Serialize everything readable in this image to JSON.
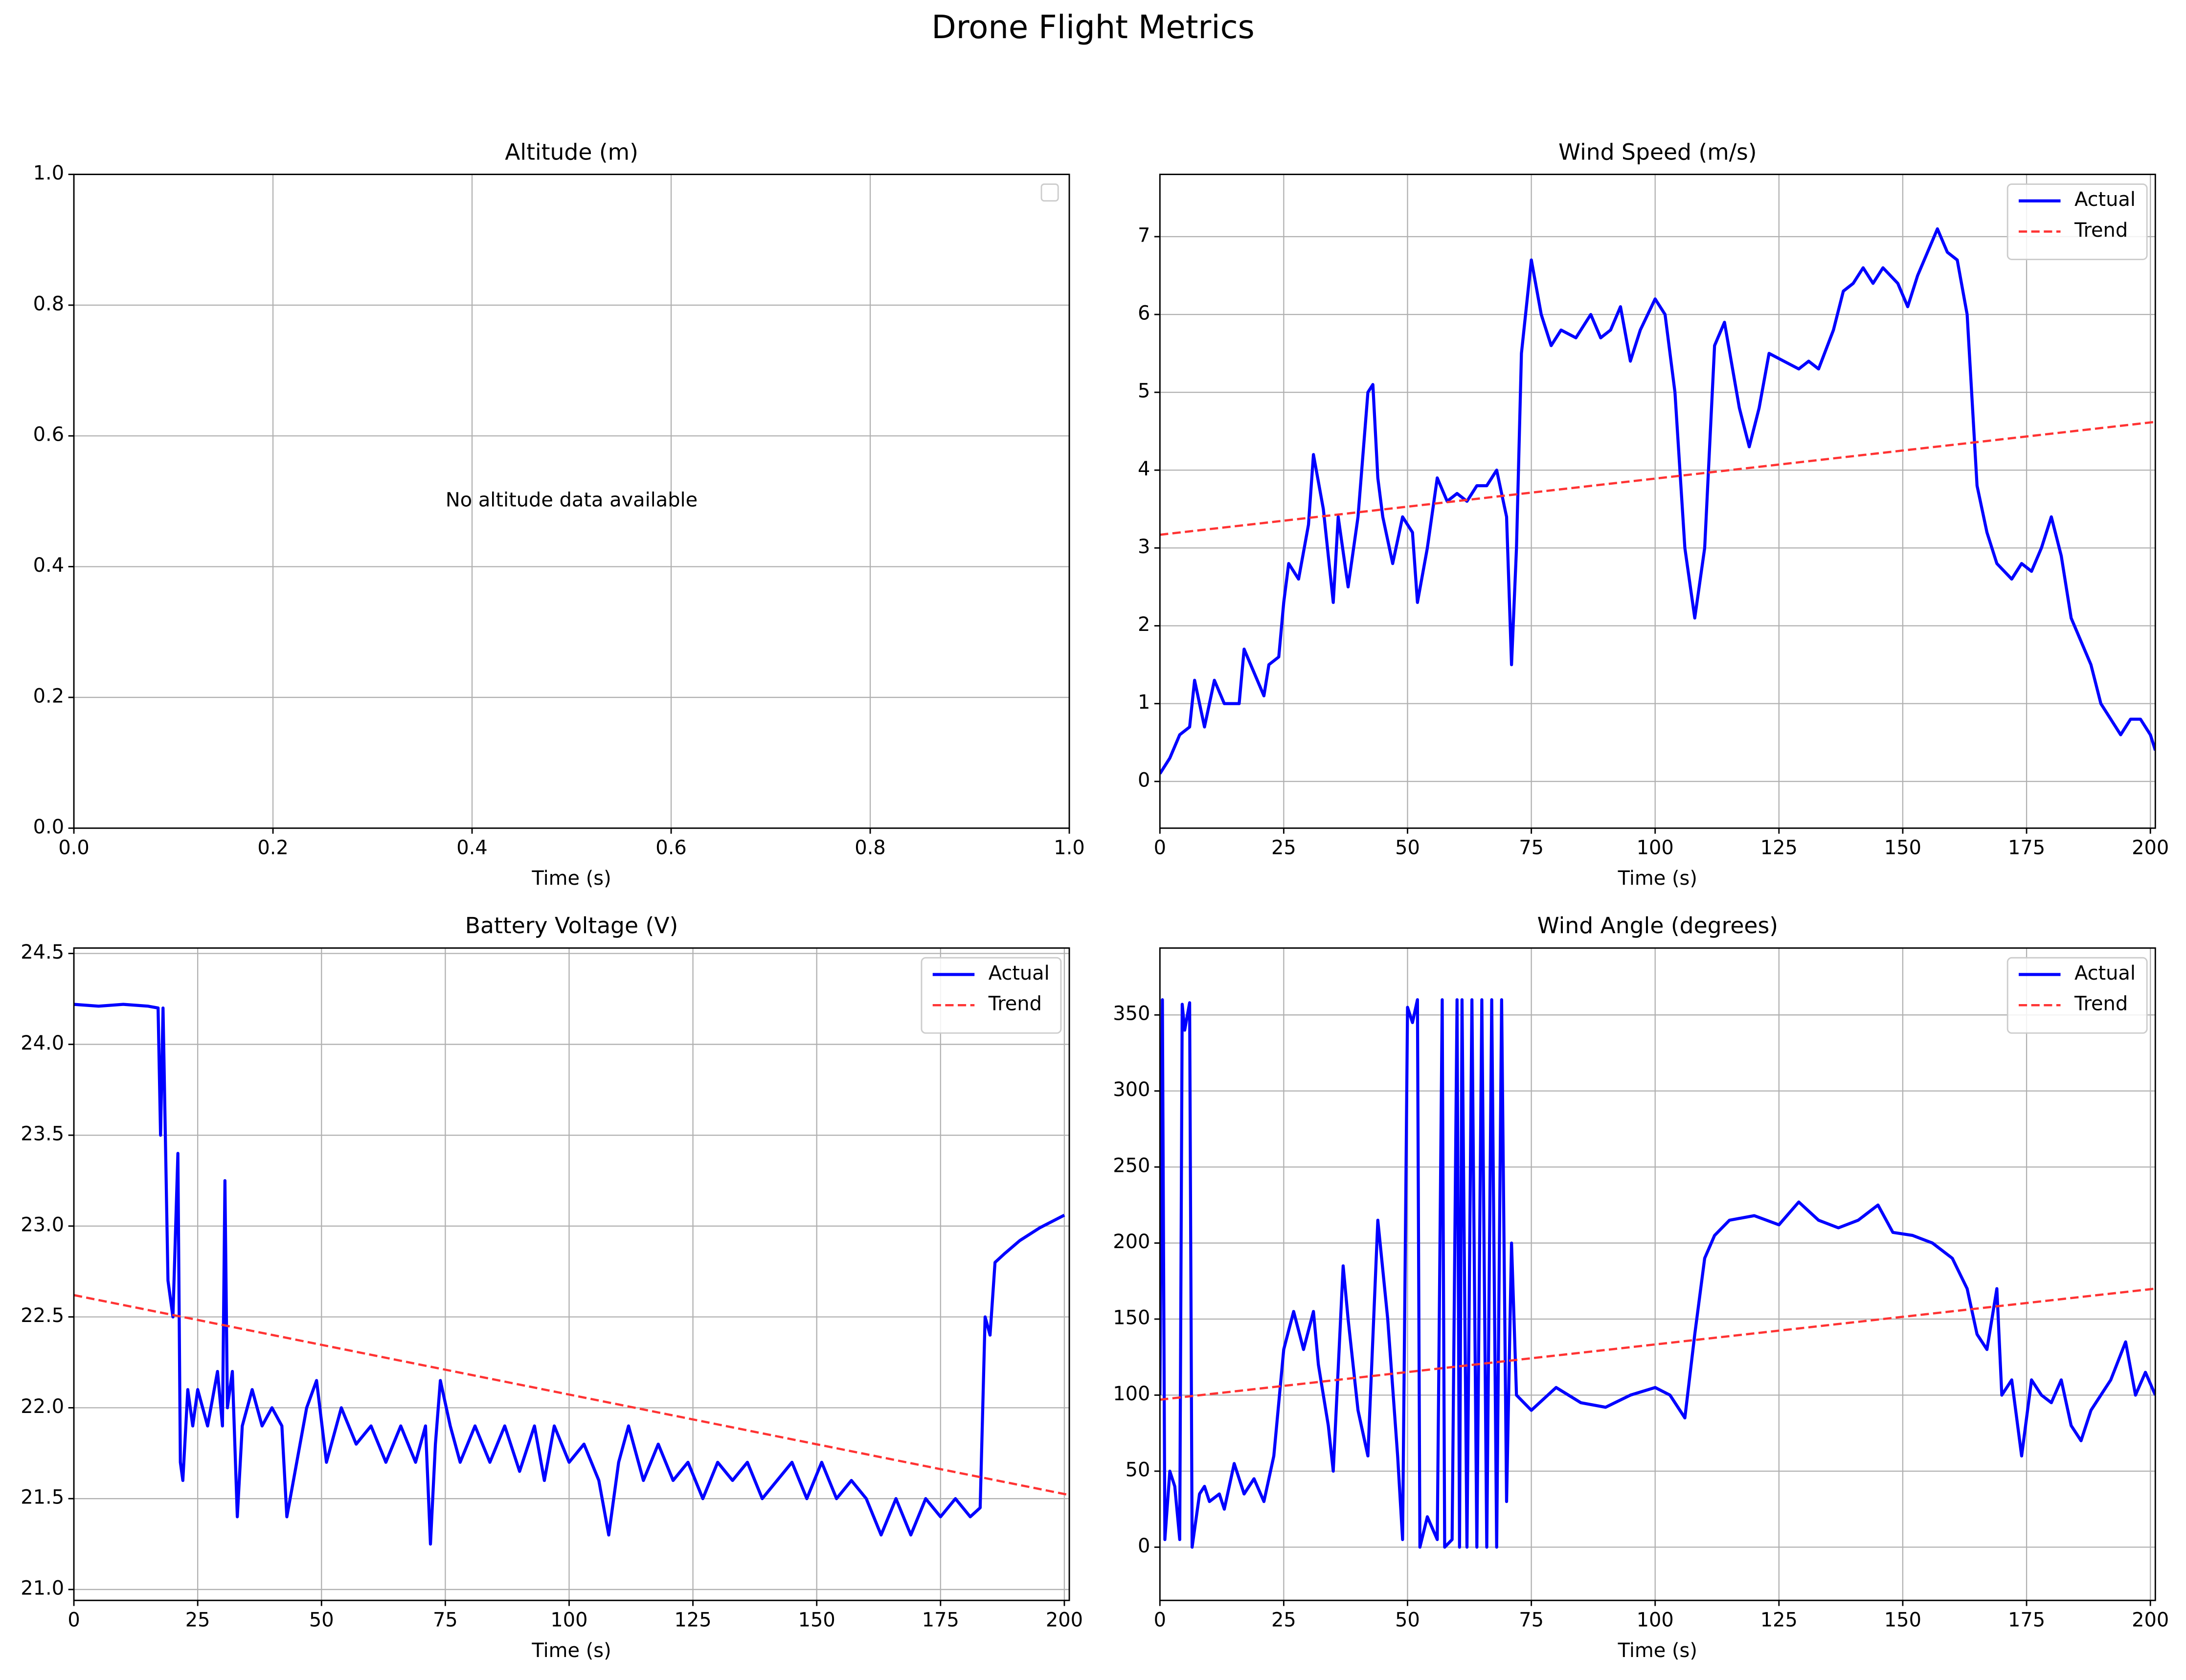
{
  "title": "Drone Flight Metrics",
  "chart_data": [
    {
      "type": "line",
      "title": "Altitude (m)",
      "xlabel": "Time (s)",
      "annotation": "No altitude data available",
      "series": [],
      "xlim": [
        0,
        1
      ],
      "ylim": [
        0,
        1
      ],
      "xticks": [
        {
          "value": 0,
          "label": "0.0"
        },
        {
          "value": 0.2,
          "label": "0.2"
        },
        {
          "value": 0.4,
          "label": "0.4"
        },
        {
          "value": 0.6,
          "label": "0.6"
        },
        {
          "value": 0.8,
          "label": "0.8"
        },
        {
          "value": 1,
          "label": "1.0"
        }
      ],
      "yticks": [
        {
          "value": 0,
          "label": "0.0"
        },
        {
          "value": 0.2,
          "label": "0.2"
        },
        {
          "value": 0.4,
          "label": "0.4"
        },
        {
          "value": 0.6,
          "label": "0.6"
        },
        {
          "value": 0.8,
          "label": "0.8"
        },
        {
          "value": 1,
          "label": "1.0"
        }
      ],
      "grid": true,
      "legend": "upper right"
    },
    {
      "type": "line",
      "title": "Wind Speed (m/s)",
      "xlabel": "Time (s)",
      "series": [
        {
          "name": "Actual",
          "color": "#0000ff",
          "style": "solid",
          "x": [
            0,
            2,
            4,
            6,
            7,
            9,
            11,
            13,
            16,
            17,
            19,
            21,
            22,
            24,
            25,
            26,
            28,
            30,
            31,
            33,
            35,
            36,
            38,
            40,
            42,
            43,
            44,
            45,
            47,
            49,
            51,
            52,
            54,
            56,
            58,
            60,
            62,
            64,
            66,
            68,
            70,
            71,
            72,
            73,
            75,
            77,
            79,
            81,
            84,
            87,
            89,
            91,
            93,
            95,
            97,
            100,
            102,
            104,
            106,
            108,
            110,
            112,
            114,
            117,
            119,
            121,
            123,
            126,
            129,
            131,
            133,
            136,
            138,
            140,
            142,
            144,
            146,
            149,
            151,
            153,
            155,
            157,
            159,
            161,
            163,
            165,
            167,
            169,
            172,
            174,
            176,
            178,
            180,
            182,
            184,
            186,
            188,
            190,
            192,
            194,
            196,
            198,
            200,
            201
          ],
          "values": [
            0.1,
            0.3,
            0.6,
            0.7,
            1.3,
            0.7,
            1.3,
            1.0,
            1.0,
            1.7,
            1.4,
            1.1,
            1.5,
            1.6,
            2.3,
            2.8,
            2.6,
            3.3,
            4.2,
            3.5,
            2.3,
            3.4,
            2.5,
            3.4,
            5.0,
            5.1,
            3.9,
            3.4,
            2.8,
            3.4,
            3.2,
            2.3,
            3.0,
            3.9,
            3.6,
            3.7,
            3.6,
            3.8,
            3.8,
            4.0,
            3.4,
            1.5,
            3.0,
            5.5,
            6.7,
            6.0,
            5.6,
            5.8,
            5.7,
            6.0,
            5.7,
            5.8,
            6.1,
            5.4,
            5.8,
            6.2,
            6.0,
            5.0,
            3.0,
            2.1,
            3.0,
            5.6,
            5.9,
            4.8,
            4.3,
            4.8,
            5.5,
            5.4,
            5.3,
            5.4,
            5.3,
            5.8,
            6.3,
            6.4,
            6.6,
            6.4,
            6.6,
            6.4,
            6.1,
            6.5,
            6.8,
            7.1,
            6.8,
            6.7,
            6.0,
            3.8,
            3.2,
            2.8,
            2.6,
            2.8,
            2.7,
            3.0,
            3.4,
            2.9,
            2.1,
            1.8,
            1.5,
            1.0,
            0.8,
            0.6,
            0.8,
            0.8,
            0.6,
            0.4
          ]
        },
        {
          "name": "Trend",
          "color": "#ff3333",
          "style": "dashed",
          "x": [
            0,
            201
          ],
          "values": [
            3.17,
            4.62
          ]
        }
      ],
      "xlim": [
        0,
        201
      ],
      "ylim": [
        -0.6,
        7.8
      ],
      "xticks": [
        0,
        25,
        50,
        75,
        100,
        125,
        150,
        175,
        200
      ],
      "yticks": [
        0,
        1,
        2,
        3,
        4,
        5,
        6,
        7
      ],
      "grid": true,
      "legend": "upper right"
    },
    {
      "type": "line",
      "title": "Battery Voltage (V)",
      "xlabel": "Time (s)",
      "series": [
        {
          "name": "Actual",
          "color": "#0000ff",
          "style": "solid",
          "x": [
            0,
            5,
            10,
            15,
            17,
            17.5,
            18,
            19,
            20,
            21,
            21.5,
            22,
            23,
            24,
            25,
            27,
            29,
            30,
            30.5,
            31,
            32,
            33,
            34,
            36,
            38,
            40,
            42,
            43,
            45,
            47,
            49,
            51,
            54,
            57,
            60,
            63,
            66,
            69,
            71,
            72,
            73,
            74,
            76,
            78,
            81,
            84,
            87,
            90,
            93,
            95,
            97,
            100,
            103,
            106,
            108,
            110,
            112,
            115,
            118,
            121,
            124,
            127,
            130,
            133,
            136,
            139,
            142,
            145,
            148,
            151,
            154,
            157,
            160,
            163,
            166,
            169,
            172,
            175,
            178,
            181,
            183,
            184,
            185,
            186,
            188,
            191,
            195,
            200
          ],
          "values": [
            24.22,
            24.21,
            24.22,
            24.21,
            24.2,
            23.5,
            24.2,
            22.7,
            22.5,
            23.4,
            21.7,
            21.6,
            22.1,
            21.9,
            22.1,
            21.9,
            22.2,
            21.9,
            23.25,
            22.0,
            22.2,
            21.4,
            21.9,
            22.1,
            21.9,
            22.0,
            21.9,
            21.4,
            21.7,
            22.0,
            22.15,
            21.7,
            22.0,
            21.8,
            21.9,
            21.7,
            21.9,
            21.7,
            21.9,
            21.25,
            21.8,
            22.15,
            21.9,
            21.7,
            21.9,
            21.7,
            21.9,
            21.65,
            21.9,
            21.6,
            21.9,
            21.7,
            21.8,
            21.6,
            21.3,
            21.7,
            21.9,
            21.6,
            21.8,
            21.6,
            21.7,
            21.5,
            21.7,
            21.6,
            21.7,
            21.5,
            21.6,
            21.7,
            21.5,
            21.7,
            21.5,
            21.6,
            21.5,
            21.3,
            21.5,
            21.3,
            21.5,
            21.4,
            21.5,
            21.4,
            21.45,
            22.5,
            22.4,
            22.8,
            22.85,
            22.92,
            22.99,
            23.06
          ]
        },
        {
          "name": "Trend",
          "color": "#ff3333",
          "style": "dashed",
          "x": [
            0,
            201
          ],
          "values": [
            22.62,
            21.52
          ]
        }
      ],
      "xlim": [
        0,
        201
      ],
      "ylim": [
        20.94,
        24.53
      ],
      "xticks": [
        0,
        25,
        50,
        75,
        100,
        125,
        150,
        175,
        200
      ],
      "yticks": [
        {
          "value": 21,
          "label": "21.0"
        },
        21.5,
        {
          "value": 22,
          "label": "22.0"
        },
        22.5,
        {
          "value": 23,
          "label": "23.0"
        },
        23.5,
        {
          "value": 24,
          "label": "24.0"
        },
        24.5
      ],
      "grid": true,
      "legend": "upper right"
    },
    {
      "type": "line",
      "title": "Wind Angle (degrees)",
      "xlabel": "Time (s)",
      "series": [
        {
          "name": "Actual",
          "color": "#0000ff",
          "style": "solid",
          "x": [
            0,
            0.5,
            1,
            2,
            3,
            4,
            4.5,
            5,
            6,
            6.5,
            8,
            9,
            10,
            12,
            13,
            15,
            17,
            19,
            21,
            23,
            25,
            27,
            29,
            31,
            32,
            34,
            35,
            37,
            38,
            40,
            42,
            44,
            46,
            48,
            49,
            50,
            51,
            52,
            52.5,
            54,
            56,
            57,
            57.5,
            59,
            60,
            60.5,
            61,
            62,
            63,
            64,
            65,
            66,
            67,
            68,
            69,
            70,
            71,
            72,
            75,
            80,
            85,
            90,
            95,
            100,
            103,
            106,
            108,
            110,
            112,
            115,
            120,
            125,
            129,
            133,
            137,
            141,
            145,
            148,
            152,
            156,
            160,
            163,
            165,
            167,
            169,
            170,
            172,
            174,
            176,
            178,
            180,
            182,
            184,
            186,
            188,
            190,
            192,
            195,
            197,
            199,
            201
          ],
          "values": [
            100,
            360,
            5,
            50,
            40,
            5,
            357,
            340,
            358,
            0,
            35,
            40,
            30,
            35,
            25,
            55,
            35,
            45,
            30,
            60,
            130,
            155,
            130,
            155,
            120,
            80,
            50,
            185,
            150,
            90,
            60,
            215,
            150,
            60,
            5,
            355,
            345,
            360,
            0,
            20,
            5,
            360,
            0,
            5,
            360,
            0,
            360,
            0,
            360,
            0,
            360,
            0,
            360,
            0,
            360,
            30,
            200,
            100,
            90,
            105,
            95,
            92,
            100,
            105,
            100,
            85,
            140,
            190,
            205,
            215,
            218,
            212,
            227,
            215,
            210,
            215,
            225,
            207,
            205,
            200,
            190,
            170,
            140,
            130,
            170,
            100,
            110,
            60,
            110,
            100,
            95,
            110,
            80,
            70,
            90,
            100,
            110,
            135,
            100,
            115,
            100
          ]
        },
        {
          "name": "Trend",
          "color": "#ff3333",
          "style": "dashed",
          "x": [
            0,
            201
          ],
          "values": [
            97,
            170
          ]
        }
      ],
      "xlim": [
        0,
        201
      ],
      "ylim": [
        -35,
        394
      ],
      "xticks": [
        0,
        25,
        50,
        75,
        100,
        125,
        150,
        175,
        200
      ],
      "yticks": [
        0,
        50,
        100,
        150,
        200,
        250,
        300,
        350
      ],
      "grid": true,
      "legend": "upper right"
    }
  ]
}
